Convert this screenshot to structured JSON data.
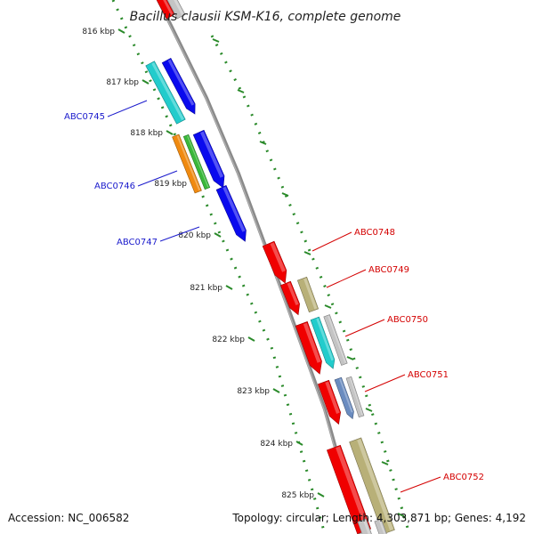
{
  "title": "Bacillus clausii KSM-K16, complete genome",
  "footer": {
    "accession": "Accession: NC_006582",
    "summary": "Topology: circular; Length: 4,303,871 bp; Genes: 4,192"
  },
  "colors": {
    "backbone": "#8a8a8a",
    "tick": "#2a8a2a",
    "left_label": "#1a1acc",
    "right_label": "#d40000",
    "blue": "#0a0aee",
    "cyan": "#22cccc",
    "orange": "#f08a10",
    "green": "#3ab83a",
    "red": "#f00000",
    "khaki": "#b8b078",
    "grey": "#c4c4c4",
    "steel": "#6a8cc0"
  },
  "ticks": [
    {
      "label": "816 kbp"
    },
    {
      "label": "817 kbp"
    },
    {
      "label": "818 kbp"
    },
    {
      "label": "819 kbp"
    },
    {
      "label": "820 kbp"
    },
    {
      "label": "821 kbp"
    },
    {
      "label": "822 kbp"
    },
    {
      "label": "823 kbp"
    },
    {
      "label": "824 kbp"
    },
    {
      "label": "825 kbp"
    }
  ],
  "labels": [
    {
      "text": "ABC0745",
      "side": "left"
    },
    {
      "text": "ABC0746",
      "side": "left"
    },
    {
      "text": "ABC0747",
      "side": "left"
    },
    {
      "text": "ABC0748",
      "side": "right"
    },
    {
      "text": "ABC0749",
      "side": "right"
    },
    {
      "text": "ABC0750",
      "side": "right"
    },
    {
      "text": "ABC0751",
      "side": "right"
    },
    {
      "text": "ABC0752",
      "side": "right"
    }
  ]
}
